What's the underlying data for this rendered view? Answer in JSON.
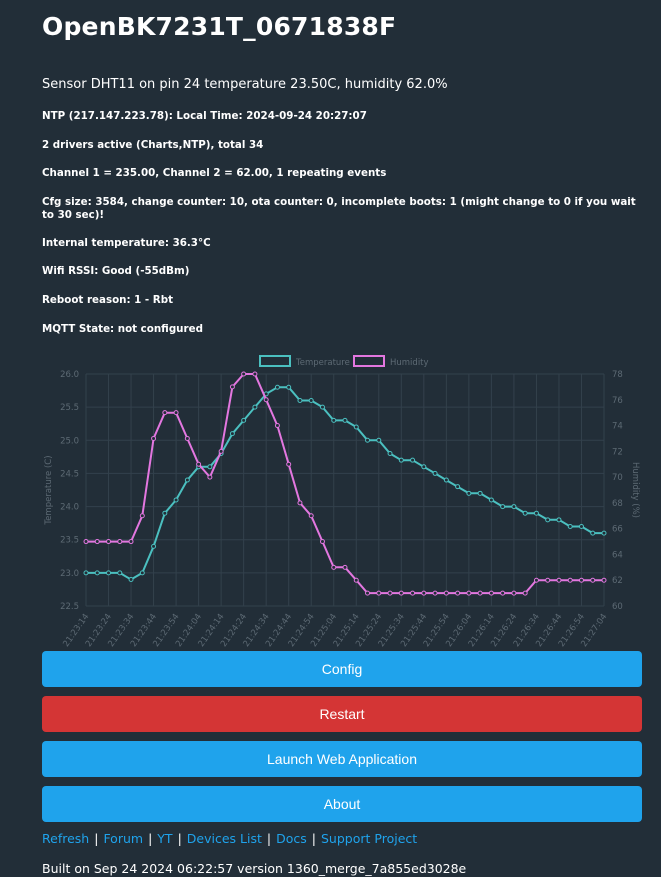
{
  "device_title": "OpenBK7231T_0671838F",
  "sensor_line": "Sensor DHT11 on pin 24 temperature 23.50C, humidity 62.0%",
  "info": {
    "ntp": "NTP (217.147.223.78): Local Time: 2024-09-24 20:27:07",
    "drivers": "2 drivers active (Charts,NTP), total 34",
    "channels": "Channel 1 = 235.00, Channel 2 = 62.00, 1 repeating events",
    "cfg": "Cfg size: 3584, change counter: 10, ota counter: 0, incomplete boots: 1 (might change to 0 if you wait to 30 sec)!",
    "internal_temp": "Internal temperature: 36.3°C",
    "wifi": "Wifi RSSI: Good (-55dBm)",
    "reboot": "Reboot reason: 1 - Rbt",
    "mqtt": "MQTT State: not configured"
  },
  "chart_data": {
    "type": "line",
    "x": [
      "21:23:14",
      "21:23:19",
      "21:23:24",
      "21:23:29",
      "21:23:34",
      "21:23:39",
      "21:23:44",
      "21:23:49",
      "21:23:54",
      "21:23:59",
      "21:24:04",
      "21:24:09",
      "21:24:14",
      "21:24:19",
      "21:24:24",
      "21:24:29",
      "21:24:34",
      "21:24:39",
      "21:24:44",
      "21:24:49",
      "21:24:54",
      "21:24:59",
      "21:25:04",
      "21:25:09",
      "21:25:14",
      "21:25:19",
      "21:25:24",
      "21:25:29",
      "21:25:34",
      "21:25:39",
      "21:25:44",
      "21:25:49",
      "21:25:54",
      "21:25:59",
      "21:26:04",
      "21:26:09",
      "21:26:14",
      "21:26:19",
      "21:26:24",
      "21:26:29",
      "21:26:34",
      "21:26:39",
      "21:26:44",
      "21:26:49",
      "21:26:54",
      "21:26:59",
      "21:27:04"
    ],
    "x_tick_labels": [
      "21:23:14",
      "21:23:24",
      "21:23:34",
      "21:23:44",
      "21:23:54",
      "21:24:04",
      "21:24:14",
      "21:24:24",
      "21:24:34",
      "21:24:44",
      "21:24:54",
      "21:25:04",
      "21:25:14",
      "21:25:24",
      "21:25:34",
      "21:25:44",
      "21:25:54",
      "21:26:04",
      "21:26:14",
      "21:26:24",
      "21:26:34",
      "21:26:44",
      "21:26:54",
      "21:27:04"
    ],
    "series": [
      {
        "name": "Temperature",
        "axis": "left",
        "color": "#4bc0c0",
        "values": [
          23.0,
          23.0,
          23.0,
          23.0,
          22.9,
          23.0,
          23.4,
          23.9,
          24.1,
          24.4,
          24.6,
          24.6,
          24.8,
          25.1,
          25.3,
          25.5,
          25.7,
          25.8,
          25.8,
          25.6,
          25.6,
          25.5,
          25.3,
          25.3,
          25.2,
          25.0,
          25.0,
          24.8,
          24.7,
          24.7,
          24.6,
          24.5,
          24.4,
          24.3,
          24.2,
          24.2,
          24.1,
          24.0,
          24.0,
          23.9,
          23.9,
          23.8,
          23.8,
          23.7,
          23.7,
          23.6,
          23.6
        ]
      },
      {
        "name": "Humidity",
        "axis": "right",
        "color": "#e377e0",
        "values": [
          65,
          65,
          65,
          65,
          65,
          67,
          73,
          75,
          75,
          73,
          71,
          70,
          72,
          77,
          78,
          78,
          76,
          74,
          71,
          68,
          67,
          65,
          63,
          63,
          62,
          61,
          61,
          61,
          61,
          61,
          61,
          61,
          61,
          61,
          61,
          61,
          61,
          61,
          61,
          61,
          62,
          62,
          62,
          62,
          62,
          62,
          62
        ]
      }
    ],
    "y_left": {
      "label": "Temperature (C)",
      "min": 22.5,
      "max": 26.0,
      "step": 0.5,
      "ticks": [
        "22.5",
        "23.0",
        "23.5",
        "24.0",
        "24.5",
        "25.0",
        "25.5",
        "26.0"
      ]
    },
    "y_right": {
      "label": "Humidity (%)",
      "min": 60,
      "max": 78,
      "step": 2,
      "ticks": [
        "60",
        "62",
        "64",
        "66",
        "68",
        "70",
        "72",
        "74",
        "76",
        "78"
      ]
    },
    "grid": true,
    "legend": "top-center"
  },
  "buttons": {
    "config": "Config",
    "restart": "Restart",
    "launch": "Launch Web Application",
    "about": "About"
  },
  "links": {
    "refresh": "Refresh",
    "forum": "Forum",
    "yt": "YT",
    "devices": "Devices List",
    "docs": "Docs",
    "support": "Support Project",
    "sep": "|"
  },
  "footer": "Built on Sep 24 2024 06:22:57 version 1360_merge_7a855ed3028e"
}
